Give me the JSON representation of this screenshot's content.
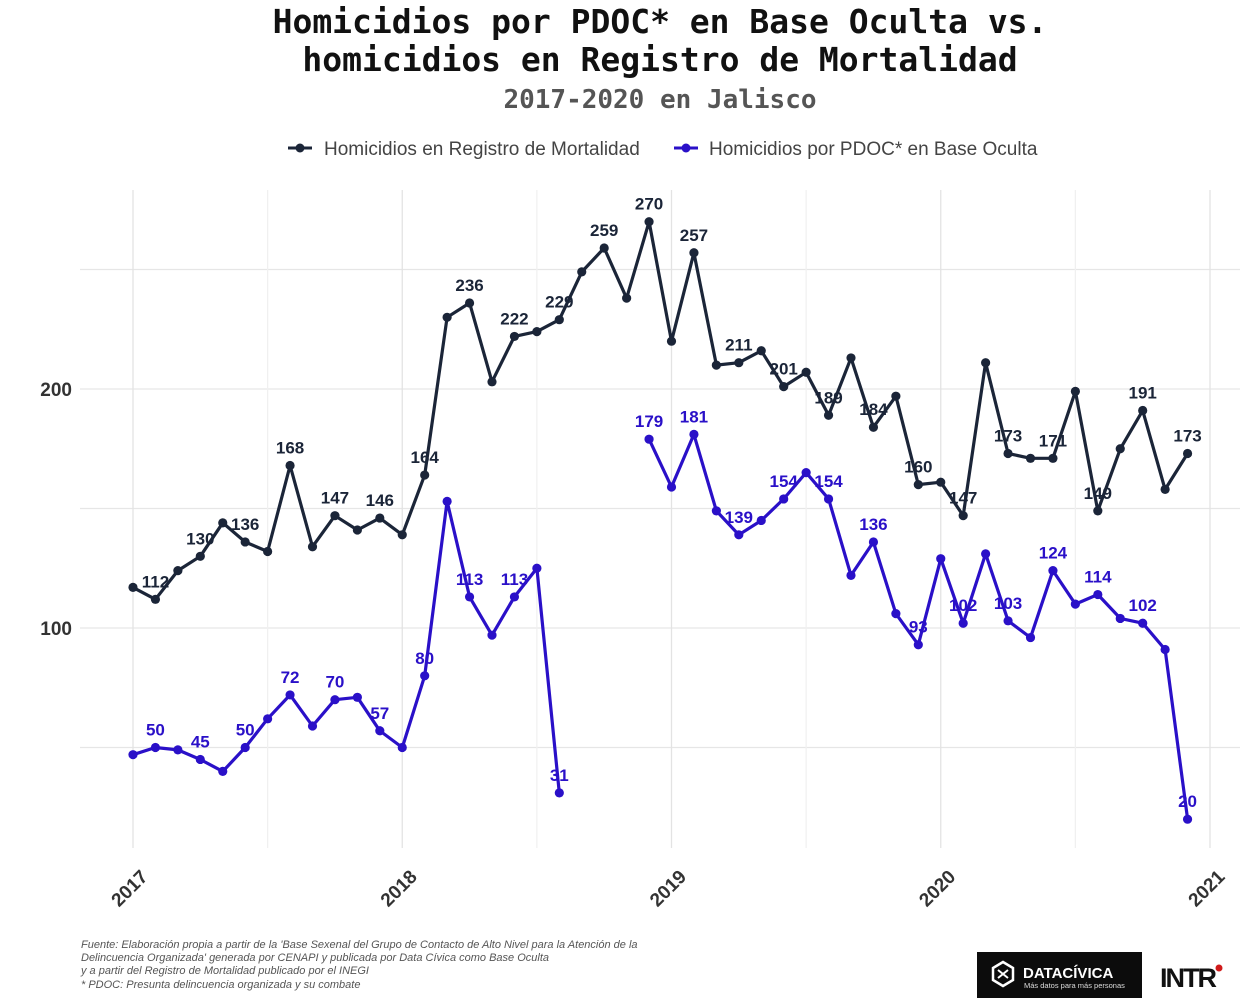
{
  "chart_data": {
    "type": "line",
    "title_line1": "Homicidios por PDOC* en Base Oculta vs.",
    "title_line2": "homicidios en Registro de Mortalidad",
    "subtitle": "2017-2020 en Jalisco",
    "xlabel": "",
    "ylabel": "",
    "ylim": [
      20,
      280
    ],
    "y_ticks": [
      100,
      200
    ],
    "y_grid": [
      50,
      100,
      150,
      200,
      250
    ],
    "x_ticks": [
      "2017",
      "2018",
      "2019",
      "2020",
      "2021"
    ],
    "x_range": [
      "2017-01",
      "2021-01"
    ],
    "grid": true,
    "legend_position": "top",
    "x": [
      "2017-01",
      "2017-02",
      "2017-03",
      "2017-04",
      "2017-05",
      "2017-06",
      "2017-07",
      "2017-08",
      "2017-09",
      "2017-10",
      "2017-11",
      "2017-12",
      "2018-01",
      "2018-02",
      "2018-03",
      "2018-04",
      "2018-05",
      "2018-06",
      "2018-07",
      "2018-08",
      "2018-09",
      "2018-10",
      "2018-11",
      "2018-12",
      "2019-01",
      "2019-02",
      "2019-03",
      "2019-04",
      "2019-05",
      "2019-06",
      "2019-07",
      "2019-08",
      "2019-09",
      "2019-10",
      "2019-11",
      "2019-12",
      "2020-01",
      "2020-02",
      "2020-03",
      "2020-04",
      "2020-05",
      "2020-06",
      "2020-07",
      "2020-08",
      "2020-09",
      "2020-10",
      "2020-11",
      "2020-12"
    ],
    "series": [
      {
        "name": "Homicidios en Registro de Mortalidad",
        "color": "#1b2538",
        "values": [
          117,
          112,
          124,
          130,
          144,
          136,
          132,
          168,
          134,
          147,
          141,
          146,
          139,
          164,
          230,
          236,
          203,
          222,
          224,
          229,
          249,
          259,
          238,
          270,
          220,
          257,
          210,
          211,
          216,
          201,
          207,
          189,
          213,
          184,
          197,
          160,
          161,
          147,
          211,
          173,
          171,
          171,
          199,
          149,
          175,
          191,
          158,
          173
        ]
      },
      {
        "name": "Homicidios por PDOC* en Base Oculta",
        "color": "#2a10c8",
        "values": [
          47,
          50,
          49,
          45,
          40,
          50,
          62,
          72,
          59,
          70,
          71,
          57,
          50,
          80,
          153,
          113,
          97,
          113,
          125,
          31,
          null,
          null,
          null,
          179,
          159,
          181,
          149,
          139,
          145,
          154,
          165,
          154,
          122,
          136,
          106,
          93,
          129,
          102,
          131,
          103,
          96,
          124,
          110,
          114,
          104,
          102,
          91,
          20
        ]
      }
    ]
  },
  "footer": {
    "lines": [
      "Fuente: Elaboración propia a partir de la 'Base Sexenal del Grupo de Contacto de Alto Nivel para la Atención de la",
      "Delincuencia Organizada' generada por CENAPI y publicada por Data Cívica como Base Oculta",
      "y a partir del Registro de Mortalidad publicado por el INEGI",
      "* PDOC: Presunta delincuencia organizada y su combate"
    ]
  },
  "logos": {
    "datacivica_name": "DATACÍVICA",
    "datacivica_tagline": "Más datos para más personas",
    "intr": "INTR"
  }
}
